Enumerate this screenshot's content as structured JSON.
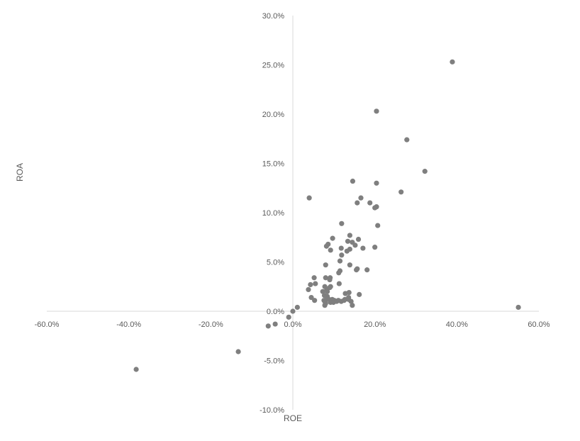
{
  "chart_data": {
    "type": "scatter",
    "title": "",
    "xlabel": "ROE",
    "ylabel": "ROA",
    "xlim": [
      -0.6,
      0.6
    ],
    "ylim": [
      -0.1,
      0.3
    ],
    "x_ticks": [
      -0.6,
      -0.4,
      -0.2,
      0.0,
      0.2,
      0.4,
      0.6
    ],
    "y_ticks": [
      -0.1,
      -0.05,
      0.0,
      0.05,
      0.1,
      0.15,
      0.2,
      0.25,
      0.3
    ],
    "x_tick_labels": [
      "-60.0%",
      "-40.0%",
      "-20.0%",
      "0.0%",
      "20.0%",
      "40.0%",
      "60.0%"
    ],
    "y_tick_labels": [
      "-10.0%",
      "-5.0%",
      "0.0%",
      "5.0%",
      "10.0%",
      "15.0%",
      "20.0%",
      "25.0%",
      "30.0%"
    ],
    "grid": false,
    "legend": "none",
    "marker_color": "#7f7f7f",
    "axis_color": "#d9d9d9",
    "text_color": "#595959",
    "points": [
      [
        0.389,
        0.253
      ],
      [
        0.204,
        0.203
      ],
      [
        0.278,
        0.174
      ],
      [
        0.322,
        0.142
      ],
      [
        0.146,
        0.132
      ],
      [
        0.204,
        0.13
      ],
      [
        0.264,
        0.121
      ],
      [
        0.04,
        0.115
      ],
      [
        0.166,
        0.115
      ],
      [
        0.157,
        0.11
      ],
      [
        0.188,
        0.11
      ],
      [
        0.204,
        0.106
      ],
      [
        0.2,
        0.105
      ],
      [
        0.119,
        0.089
      ],
      [
        0.207,
        0.087
      ],
      [
        0.139,
        0.077
      ],
      [
        0.097,
        0.074
      ],
      [
        0.16,
        0.073
      ],
      [
        0.134,
        0.071
      ],
      [
        0.145,
        0.07
      ],
      [
        0.152,
        0.067
      ],
      [
        0.086,
        0.068
      ],
      [
        0.082,
        0.066
      ],
      [
        0.171,
        0.064
      ],
      [
        0.2,
        0.065
      ],
      [
        0.118,
        0.064
      ],
      [
        0.139,
        0.063
      ],
      [
        0.092,
        0.062
      ],
      [
        0.132,
        0.061
      ],
      [
        0.119,
        0.057
      ],
      [
        0.115,
        0.051
      ],
      [
        0.08,
        0.047
      ],
      [
        0.139,
        0.047
      ],
      [
        0.157,
        0.043
      ],
      [
        0.155,
        0.042
      ],
      [
        0.181,
        0.042
      ],
      [
        0.115,
        0.041
      ],
      [
        0.112,
        0.039
      ],
      [
        0.052,
        0.034
      ],
      [
        0.08,
        0.034
      ],
      [
        0.091,
        0.034
      ],
      [
        0.09,
        0.032
      ],
      [
        0.055,
        0.028
      ],
      [
        0.043,
        0.027
      ],
      [
        0.113,
        0.028
      ],
      [
        0.078,
        0.025
      ],
      [
        0.092,
        0.025
      ],
      [
        0.09,
        0.024
      ],
      [
        0.083,
        0.022
      ],
      [
        0.038,
        0.022
      ],
      [
        0.073,
        0.02
      ],
      [
        0.084,
        0.02
      ],
      [
        0.137,
        0.019
      ],
      [
        0.128,
        0.018
      ],
      [
        0.162,
        0.017
      ],
      [
        0.077,
        0.016
      ],
      [
        0.084,
        0.015
      ],
      [
        0.045,
        0.014
      ],
      [
        0.136,
        0.014
      ],
      [
        0.053,
        0.011
      ],
      [
        0.076,
        0.011
      ],
      [
        0.083,
        0.012
      ],
      [
        0.088,
        0.012
      ],
      [
        0.096,
        0.012
      ],
      [
        0.101,
        0.011
      ],
      [
        0.111,
        0.011
      ],
      [
        0.127,
        0.012
      ],
      [
        0.136,
        0.012
      ],
      [
        0.079,
        0.009
      ],
      [
        0.092,
        0.009
      ],
      [
        0.107,
        0.01
      ],
      [
        0.118,
        0.01
      ],
      [
        0.125,
        0.011
      ],
      [
        0.142,
        0.01
      ],
      [
        0.08,
        0.008
      ],
      [
        0.099,
        0.009
      ],
      [
        0.078,
        0.006
      ],
      [
        0.145,
        0.006
      ],
      [
        0.011,
        0.004
      ],
      [
        0.55,
        0.004
      ],
      [
        0.0,
        0.0
      ],
      [
        -0.01,
        -0.006
      ],
      [
        -0.043,
        -0.013
      ],
      [
        -0.06,
        -0.015
      ],
      [
        -0.133,
        -0.041
      ],
      [
        -0.382,
        -0.059
      ]
    ]
  }
}
